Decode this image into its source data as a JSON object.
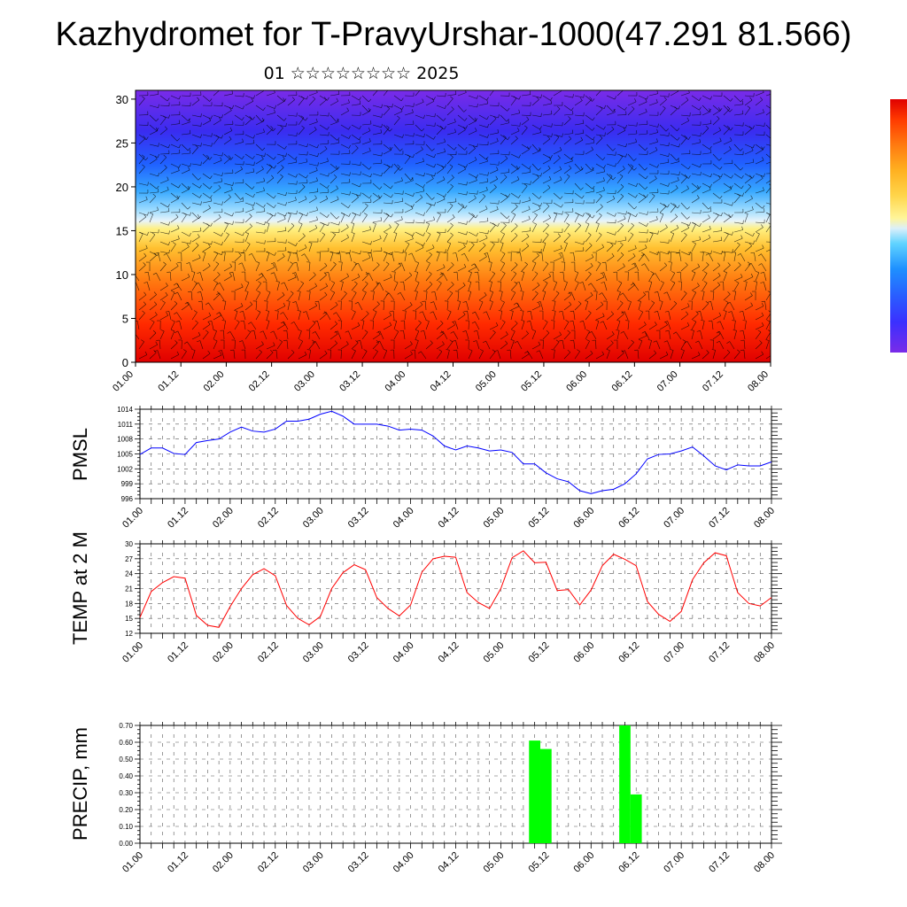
{
  "title": "Kazhydromet for T-PravyUrshar-1000(47.291 81.566)",
  "subtitle": "01 ☆☆☆☆☆☆☆☆ 2025",
  "colors": {
    "pmsl_line": "#0000ff",
    "temp_line": "#ff0000",
    "precip_bar": "#00ff00",
    "colorbar": [
      "#7a2be8",
      "#3b30ff",
      "#2a5cff",
      "#1e90ff",
      "#5fd3ff",
      "#dbeffa",
      "#fff59a",
      "#ffd54a",
      "#ffb020",
      "#ff7a10",
      "#ff3a00",
      "#e00000"
    ]
  },
  "chart_data": [
    {
      "type": "heatmap",
      "title": "",
      "xlabel": "",
      "ylabel": "",
      "x_ticks": [
        "01.00",
        "01.12",
        "02.00",
        "02.12",
        "03.00",
        "03.12",
        "04.00",
        "04.12",
        "05.00",
        "05.12",
        "06.00",
        "06.12",
        "07.00",
        "07.12",
        "08.00"
      ],
      "y_ticks": [
        "0",
        "5",
        "10",
        "15",
        "20",
        "25",
        "30"
      ],
      "ylim": [
        0,
        31
      ],
      "overlay": "wind barbs"
    },
    {
      "type": "line",
      "ylabel": "PMSL",
      "ylim": [
        996,
        1014
      ],
      "y_ticks": [
        "996",
        "999",
        "1002",
        "1005",
        "1008",
        "1011",
        "1014"
      ],
      "x_ticks": [
        "01.00",
        "01.12",
        "02.00",
        "02.12",
        "03.00",
        "03.12",
        "04.00",
        "04.12",
        "05.00",
        "05.12",
        "06.00",
        "06.12",
        "07.00",
        "07.12",
        "08.00"
      ],
      "x": [
        0,
        3,
        6,
        9,
        12,
        15,
        18,
        21,
        24,
        27,
        30,
        33,
        36,
        39,
        42,
        45,
        48,
        51,
        54,
        57,
        60,
        63,
        66,
        69,
        72,
        75,
        78,
        81,
        84,
        87,
        90,
        93,
        96,
        99,
        102,
        105,
        108,
        111,
        114,
        117,
        120,
        123,
        126,
        129,
        132,
        135,
        138,
        141,
        144,
        147,
        150,
        153,
        156,
        159,
        162,
        165,
        168
      ],
      "series": [
        {
          "values": [
            1004.9,
            1006.2,
            1006.2,
            1005.1,
            1004.9,
            1007.3,
            1007.7,
            1008.0,
            1009.4,
            1010.4,
            1009.6,
            1009.4,
            1010.0,
            1011.6,
            1011.6,
            1012.0,
            1013.0,
            1013.6,
            1012.6,
            1011.0,
            1011.0,
            1011.0,
            1010.6,
            1009.8,
            1010.0,
            1009.8,
            1008.6,
            1006.6,
            1005.8,
            1006.6,
            1006.2,
            1005.6,
            1005.8,
            1005.3,
            1003.0,
            1003.0,
            1001.2,
            1000.0,
            999.4,
            997.6,
            997.0,
            997.6,
            997.9,
            999.0,
            1001.0,
            1004.0,
            1004.9,
            1005.0,
            1005.6,
            1006.4,
            1004.6,
            1002.6,
            1001.8,
            1002.8,
            1002.6,
            1002.6,
            1003.4
          ]
        }
      ]
    },
    {
      "type": "line",
      "ylabel": "TEMP at 2 M",
      "ylim": [
        12,
        30
      ],
      "y_ticks": [
        "12",
        "15",
        "18",
        "21",
        "24",
        "27",
        "30"
      ],
      "x_ticks": [
        "01.00",
        "01.12",
        "02.00",
        "02.12",
        "03.00",
        "03.12",
        "04.00",
        "04.12",
        "05.00",
        "05.12",
        "06.00",
        "06.12",
        "07.00",
        "07.12",
        "08.00"
      ],
      "x": [
        0,
        3,
        6,
        9,
        12,
        15,
        18,
        21,
        24,
        27,
        30,
        33,
        36,
        39,
        42,
        45,
        48,
        51,
        54,
        57,
        60,
        63,
        66,
        69,
        72,
        75,
        78,
        81,
        84,
        87,
        90,
        93,
        96,
        99,
        102,
        105,
        108,
        111,
        114,
        117,
        120,
        123,
        126,
        129,
        132,
        135,
        138,
        141,
        144,
        147,
        150,
        153,
        156,
        159,
        162,
        165,
        168
      ],
      "series": [
        {
          "values": [
            15.2,
            20.4,
            22.2,
            23.4,
            23.1,
            15.6,
            13.6,
            13.2,
            17.4,
            21.0,
            23.8,
            25.0,
            23.6,
            17.6,
            15.0,
            13.7,
            15.4,
            21.0,
            24.2,
            25.8,
            24.8,
            19.2,
            17.0,
            15.5,
            17.7,
            24.3,
            27.0,
            27.5,
            27.3,
            20.2,
            18.2,
            17.0,
            21.0,
            27.2,
            28.6,
            26.2,
            26.3,
            20.6,
            20.8,
            17.7,
            20.7,
            25.6,
            27.9,
            26.9,
            25.6,
            18.4,
            15.8,
            14.4,
            16.4,
            22.8,
            26.2,
            28.2,
            27.6,
            20.2,
            18.0,
            17.5,
            19.2
          ]
        }
      ]
    },
    {
      "type": "bar",
      "ylabel": "PRECIP, mm",
      "ylim": [
        0.0,
        0.7
      ],
      "y_ticks": [
        "0.00",
        "0.10",
        "0.20",
        "0.30",
        "0.40",
        "0.50",
        "0.60",
        "0.70"
      ],
      "x_ticks": [
        "01.00",
        "01.12",
        "02.00",
        "02.12",
        "03.00",
        "03.12",
        "04.00",
        "04.12",
        "05.00",
        "05.12",
        "06.00",
        "06.12",
        "07.00",
        "07.12",
        "08.00"
      ],
      "bars": [
        {
          "x": 105,
          "value": 0.61
        },
        {
          "x": 108,
          "value": 0.56
        },
        {
          "x": 129,
          "value": 0.7
        },
        {
          "x": 132,
          "value": 0.29
        }
      ],
      "bar_width": 3
    }
  ]
}
